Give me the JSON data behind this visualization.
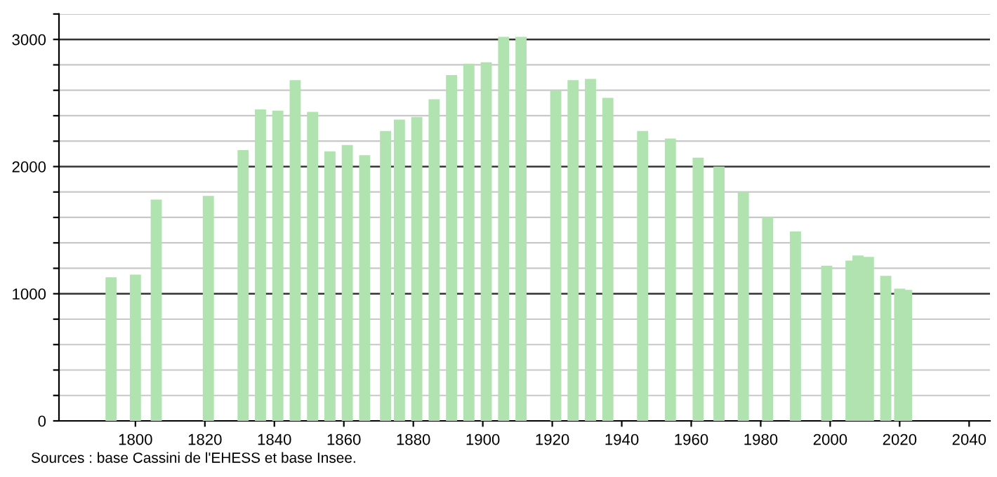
{
  "chart_data": {
    "type": "bar",
    "color": "#b0e3b0",
    "x": [
      1793,
      1800,
      1806,
      1821,
      1831,
      1836,
      1841,
      1846,
      1851,
      1856,
      1861,
      1866,
      1872,
      1876,
      1881,
      1886,
      1891,
      1896,
      1901,
      1906,
      1911,
      1921,
      1926,
      1931,
      1936,
      1946,
      1954,
      1962,
      1968,
      1975,
      1982,
      1990,
      1999,
      2006,
      2008,
      2011,
      2016,
      2020,
      2022
    ],
    "values": [
      1130,
      1150,
      1740,
      1770,
      2130,
      2450,
      2440,
      2680,
      2430,
      2120,
      2170,
      2090,
      2280,
      2370,
      2390,
      2530,
      2720,
      2810,
      2820,
      3020,
      3020,
      2600,
      2680,
      2690,
      2540,
      2280,
      2220,
      2070,
      2000,
      1800,
      1600,
      1490,
      1220,
      1260,
      1300,
      1290,
      1140,
      1040,
      1030
    ],
    "xlim": [
      1778,
      2046
    ],
    "xticks": [
      1800,
      1820,
      1840,
      1860,
      1880,
      1900,
      1920,
      1940,
      1960,
      1980,
      2000,
      2020,
      2040
    ],
    "ylim": [
      0,
      3200
    ],
    "yticks": [
      0,
      {
        "value": 200,
        "label": null
      },
      {
        "value": 400,
        "label": null
      },
      {
        "value": 600,
        "label": null
      },
      {
        "value": 800,
        "label": null
      },
      1000,
      {
        "value": 1200,
        "label": null
      },
      {
        "value": 1400,
        "label": null
      },
      {
        "value": 1600,
        "label": null
      },
      {
        "value": 1800,
        "label": null
      },
      2000,
      {
        "value": 2200,
        "label": null
      },
      {
        "value": 2400,
        "label": null
      },
      {
        "value": 2600,
        "label": null
      },
      {
        "value": 2800,
        "label": null
      },
      3000,
      {
        "value": 3200,
        "label": null
      }
    ],
    "grid": "y",
    "annotations": [
      "Sources : base Cassini de l'EHESS et base Insee."
    ]
  }
}
